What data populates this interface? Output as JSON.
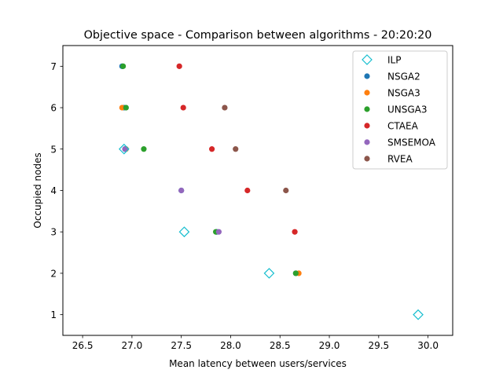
{
  "chart_data": {
    "type": "scatter",
    "title": "Objective space - Comparison between algorithms - 20:20:20",
    "xlabel": "Mean latency between users/services",
    "ylabel": "Occupied nodes",
    "xlim": [
      26.3,
      30.25
    ],
    "ylim": [
      0.5,
      7.5
    ],
    "xticks": [
      "26.5",
      "27.0",
      "27.5",
      "28.0",
      "28.5",
      "29.0",
      "29.5",
      "30.0"
    ],
    "yticks": [
      "1",
      "2",
      "3",
      "4",
      "5",
      "6",
      "7"
    ],
    "legend_position": "top-right",
    "grid": false,
    "series": [
      {
        "name": "ILP",
        "color": "#17becf",
        "marker": "diamond-open",
        "points": [
          [
            26.92,
            5
          ],
          [
            27.53,
            3
          ],
          [
            28.39,
            2
          ],
          [
            29.9,
            1
          ]
        ]
      },
      {
        "name": "NSGA2",
        "color": "#1f77b4",
        "marker": "circle",
        "points": [
          [
            26.9,
            7
          ],
          [
            26.92,
            6
          ],
          [
            26.93,
            5
          ],
          [
            27.5,
            4
          ],
          [
            27.86,
            3
          ],
          [
            28.66,
            2
          ]
        ]
      },
      {
        "name": "NSGA3",
        "color": "#ff7f0e",
        "marker": "circle",
        "points": [
          [
            26.9,
            6
          ],
          [
            26.94,
            5
          ],
          [
            28.69,
            2
          ]
        ]
      },
      {
        "name": "UNSGA3",
        "color": "#2ca02c",
        "marker": "circle",
        "points": [
          [
            26.91,
            7
          ],
          [
            26.94,
            6
          ],
          [
            27.12,
            5
          ],
          [
            27.85,
            3
          ],
          [
            28.66,
            2
          ]
        ]
      },
      {
        "name": "CTAEA",
        "color": "#d62728",
        "marker": "circle",
        "points": [
          [
            27.48,
            7
          ],
          [
            27.52,
            6
          ],
          [
            27.81,
            5
          ],
          [
            28.17,
            4
          ],
          [
            28.65,
            3
          ]
        ]
      },
      {
        "name": "SMSEMOA",
        "color": "#9467bd",
        "marker": "circle",
        "points": [
          [
            26.93,
            5
          ],
          [
            27.5,
            4
          ],
          [
            27.88,
            3
          ]
        ]
      },
      {
        "name": "RVEA",
        "color": "#8c564b",
        "marker": "circle",
        "points": [
          [
            27.94,
            6
          ],
          [
            28.05,
            5
          ],
          [
            28.56,
            4
          ]
        ]
      }
    ]
  }
}
